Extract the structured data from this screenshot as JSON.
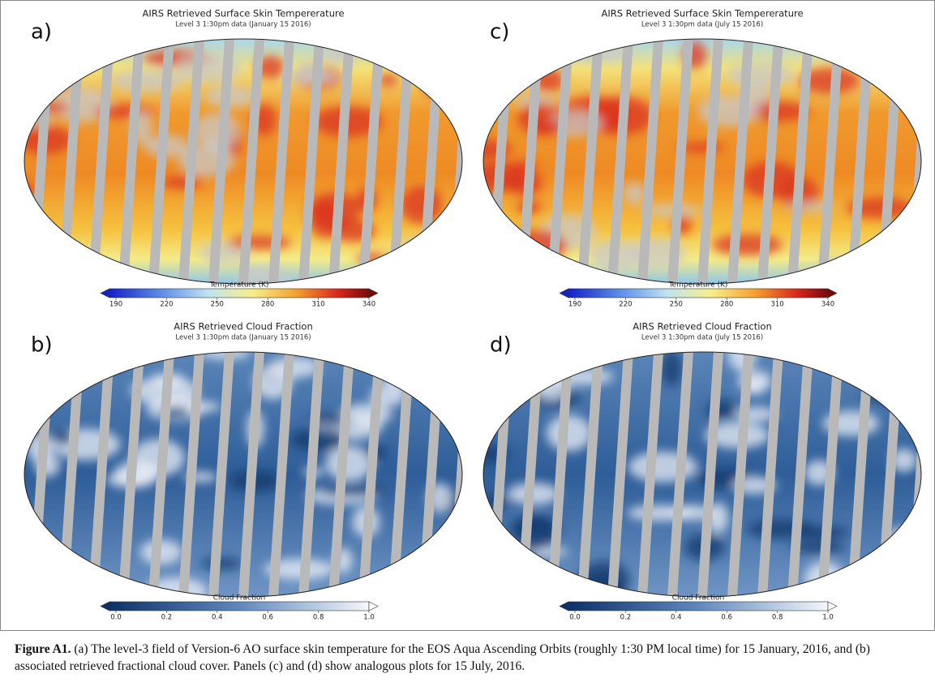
{
  "panels": [
    {
      "label": "a)",
      "title": "AIRS Retrieved Surface Skin Tempererature",
      "subtitle": "Level 3 1:30pm data (January 15 2016)",
      "colorbar": {
        "label": "Temperature (K)",
        "ticks": [
          190,
          220,
          250,
          280,
          310,
          340
        ]
      }
    },
    {
      "label": "b)",
      "title": "AIRS Retrieved Cloud Fraction",
      "subtitle": "Level 3 1:30pm data (January 15 2016)",
      "colorbar": {
        "label": "Cloud Fraction",
        "ticks": [
          "0.0",
          "0.2",
          "0.4",
          "0.6",
          "0.8",
          "1.0"
        ]
      }
    },
    {
      "label": "c)",
      "title": "AIRS Retrieved Surface Skin Tempererature",
      "subtitle": "Level 3 1:30pm data (July 15 2016)",
      "colorbar": {
        "label": "Temperature (K)",
        "ticks": [
          190,
          220,
          250,
          280,
          310,
          340
        ]
      }
    },
    {
      "label": "d)",
      "title": "AIRS Retrieved Cloud Fraction",
      "subtitle": "Level 3 1:30pm data (July 15 2016)",
      "colorbar": {
        "label": "Cloud Fraction",
        "ticks": [
          "0.0",
          "0.2",
          "0.4",
          "0.6",
          "0.8",
          "1.0"
        ]
      }
    }
  ],
  "caption": {
    "label": "Figure A1.",
    "text": "(a) The level-3 field of Version-6 AO surface skin temperature for the EOS Aqua Ascending Orbits (roughly 1:30 PM local time) for 15 January, 2016, and (b) associated retrieved fractional cloud cover. Panels (c) and (d) show analogous plots for 15 July, 2016."
  }
}
